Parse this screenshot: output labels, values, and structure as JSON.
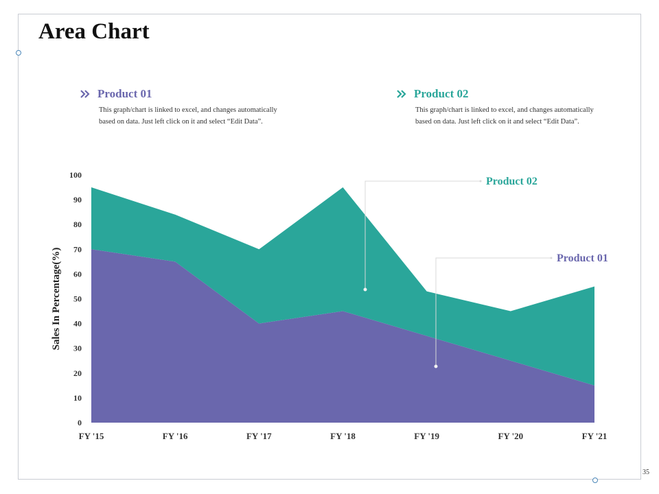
{
  "slide": {
    "title": "Area Chart",
    "page_number": "35"
  },
  "legend": [
    {
      "title": "Product 01",
      "color": "#6a67ad",
      "icon": "double-chevron-icon",
      "description": "This graph/chart is linked to excel, and changes automatically based on data. Just left click on it and select “Edit Data”."
    },
    {
      "title": "Product 02",
      "color": "#2aa69a",
      "icon": "double-chevron-icon",
      "description": "This graph/chart is linked to excel, and changes automatically based on data. Just left click on it and select “Edit Data”."
    }
  ],
  "chart_data": {
    "type": "area",
    "stacked": true,
    "categories": [
      "FY '15",
      "FY '16",
      "FY '17",
      "FY '18",
      "FY '19",
      "FY '20",
      "FY '21"
    ],
    "series": [
      {
        "name": "Product 01",
        "color": "#6a67ad",
        "values": [
          70,
          65,
          40,
          45,
          35,
          25,
          15
        ]
      },
      {
        "name": "Product 02",
        "color": "#2aa69a",
        "values": [
          25,
          19,
          30,
          50,
          18,
          20,
          40
        ]
      }
    ],
    "ylabel": "Sales In Percentage(%)",
    "xlabel": "",
    "ylim": [
      0,
      100
    ],
    "yticks": [
      0,
      10,
      20,
      30,
      40,
      50,
      60,
      70,
      80,
      90,
      100
    ],
    "grid": false,
    "callouts": [
      {
        "label": "Product 02",
        "series": "Product 02",
        "color": "#2aa69a"
      },
      {
        "label": "Product 01",
        "series": "Product 01",
        "color": "#6a67ad"
      }
    ]
  }
}
